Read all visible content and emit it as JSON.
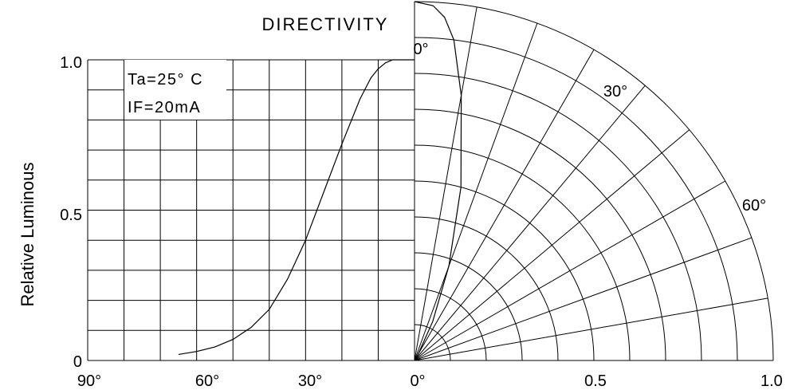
{
  "chart_data": {
    "type": "line",
    "title": "DIRECTIVITY",
    "ylabel": "Relative Luminous",
    "ylim": [
      0,
      1.0
    ],
    "y_tick_labels": [
      "1.0",
      "0.5",
      "0"
    ],
    "x_tick_labels_angle": [
      "90°",
      "60°",
      "30°",
      "0°"
    ],
    "x_tick_labels_radius": [
      "0.5",
      "1.0"
    ],
    "polar_angle_labels": [
      "0°",
      "30°",
      "60°"
    ],
    "annotations": [
      "Ta=25° C",
      "IF=20mA"
    ],
    "grid": true,
    "series": [
      {
        "plot": "cartesian",
        "x_unit": "degrees off-axis",
        "x": [
          65,
          60,
          55,
          50,
          45,
          40,
          35,
          30,
          25,
          20,
          15,
          12,
          10,
          8,
          6,
          5,
          3,
          0
        ],
        "y": [
          0.02,
          0.03,
          0.045,
          0.07,
          0.11,
          0.17,
          0.27,
          0.4,
          0.56,
          0.72,
          0.87,
          0.94,
          0.97,
          0.99,
          1.0,
          1.0,
          1.0,
          1.0
        ]
      },
      {
        "plot": "polar",
        "theta_unit": "degrees off-axis",
        "theta": [
          0,
          3,
          5,
          7,
          10,
          15,
          20,
          25,
          30
        ],
        "r": [
          1.0,
          0.99,
          0.96,
          0.9,
          0.75,
          0.5,
          0.28,
          0.12,
          0.02
        ]
      }
    ]
  }
}
